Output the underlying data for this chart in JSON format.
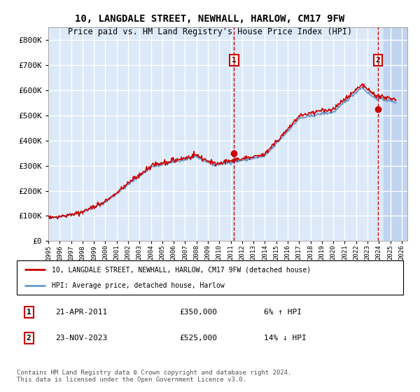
{
  "title": "10, LANGDALE STREET, NEWHALL, HARLOW, CM17 9FW",
  "subtitle": "Price paid vs. HM Land Registry's House Price Index (HPI)",
  "ytick_values": [
    0,
    100000,
    200000,
    300000,
    400000,
    500000,
    600000,
    700000,
    800000
  ],
  "ylim": [
    0,
    850000
  ],
  "xlim_start": 1995.0,
  "xlim_end": 2026.5,
  "background_color": "#dce9f8",
  "hatch_color": "#c0d4ef",
  "grid_color": "#ffffff",
  "red_line_color": "#cc0000",
  "blue_line_color": "#6699cc",
  "sale1_year": 2011.3,
  "sale1_price": 350000,
  "sale2_year": 2023.9,
  "sale2_price": 525000,
  "legend1_text": "10, LANGDALE STREET, NEWHALL, HARLOW, CM17 9FW (detached house)",
  "legend2_text": "HPI: Average price, detached house, Harlow",
  "table_row1_box": "1",
  "table_row1_date": "21-APR-2011",
  "table_row1_price": "£350,000",
  "table_row1_hpi": "6% ↑ HPI",
  "table_row2_box": "2",
  "table_row2_date": "23-NOV-2023",
  "table_row2_price": "£525,000",
  "table_row2_hpi": "14% ↓ HPI",
  "footer": "Contains HM Land Registry data © Crown copyright and database right 2024.\nThis data is licensed under the Open Government Licence v3.0."
}
